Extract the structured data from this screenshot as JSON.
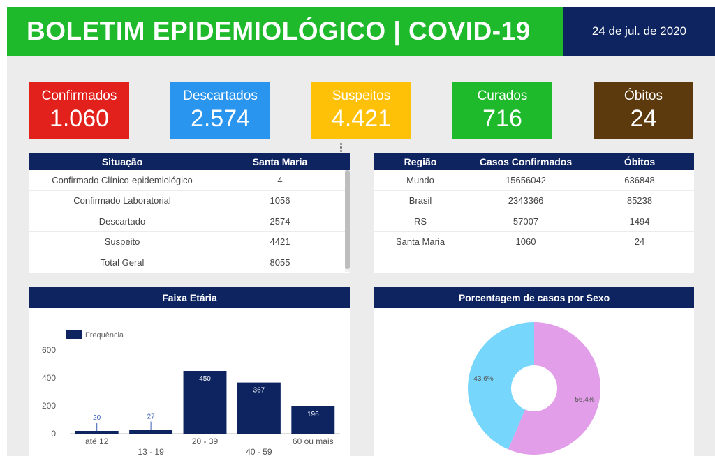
{
  "header": {
    "title": "BOLETIM EPIDEMIOLÓGICO | COVID-19",
    "date": "24 de jul. de 2020"
  },
  "kpis": [
    {
      "label": "Confirmados",
      "value": "1.060",
      "color": "#e3211c"
    },
    {
      "label": "Descartados",
      "value": "2.574",
      "color": "#2a95ee"
    },
    {
      "label": "Suspeitos",
      "value": "4.421",
      "color": "#ffc107"
    },
    {
      "label": "Curados",
      "value": "716",
      "color": "#1fba2c"
    },
    {
      "label": "Óbitos",
      "value": "24",
      "color": "#5c3a0d"
    }
  ],
  "situation_table": {
    "headers": [
      "Situação",
      "Santa Maria"
    ],
    "rows": [
      [
        "Confirmado Clínico-epidemiológico",
        "4"
      ],
      [
        "Confirmado Laboratorial",
        "1056"
      ],
      [
        "Descartado",
        "2574"
      ],
      [
        "Suspeito",
        "4421"
      ],
      [
        "Total Geral",
        "8055"
      ]
    ]
  },
  "region_table": {
    "headers": [
      "Região",
      "Casos Confirmados",
      "Óbitos"
    ],
    "rows": [
      [
        "Mundo",
        "15656042",
        "636848"
      ],
      [
        "Brasil",
        "2343366",
        "85238"
      ],
      [
        "RS",
        "57007",
        "1494"
      ],
      [
        "Santa Maria",
        "1060",
        "24"
      ]
    ]
  },
  "age_panel": {
    "title": "Faixa Etária"
  },
  "sex_panel": {
    "title": "Porcentagem de casos por Sexo"
  },
  "chart_data": [
    {
      "type": "bar",
      "title": "Faixa Etária",
      "categories": [
        "até 12",
        "13 - 19",
        "20 - 39",
        "40 - 59",
        "60 ou mais"
      ],
      "series": [
        {
          "name": "Frequência",
          "values": [
            20,
            27,
            450,
            367,
            196
          ]
        }
      ],
      "yticks": [
        0,
        200,
        400,
        600
      ],
      "ylim": [
        0,
        650
      ],
      "color": "#0d2461",
      "legend": "top-left"
    },
    {
      "type": "pie",
      "title": "Porcentagem de casos por Sexo",
      "donut": true,
      "slices": [
        {
          "label": "43,6%",
          "value": 43.6,
          "color": "#77d6fb"
        },
        {
          "label": "56,4%",
          "value": 56.4,
          "color": "#e29ee8"
        }
      ]
    }
  ]
}
